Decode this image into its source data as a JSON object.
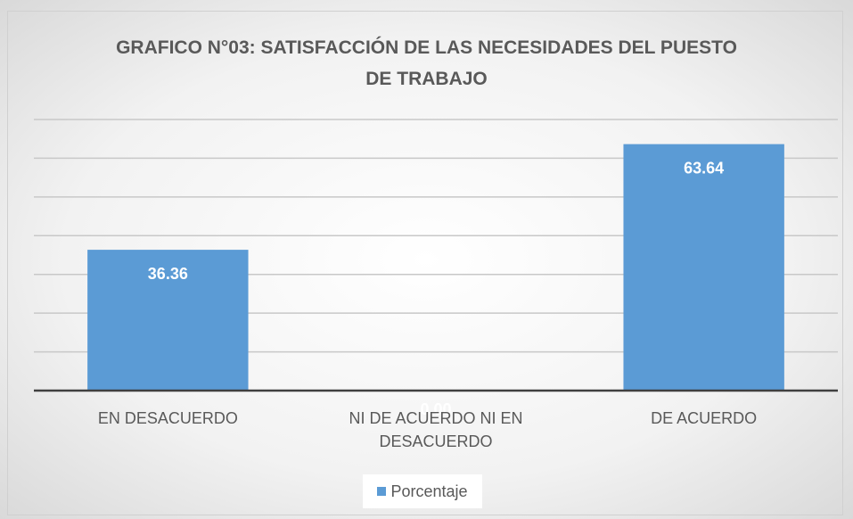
{
  "chart_data": {
    "type": "bar",
    "title": "GRAFICO N°03: SATISFACCIÓN DE LAS NECESIDADES DEL PUESTO DE TRABAJO",
    "categories": [
      "EN DESACUERDO",
      "NI DE ACUERDO NI EN DESACUERDO",
      "DE ACUERDO"
    ],
    "series": [
      {
        "name": "Porcentaje",
        "color": "#5b9bd5",
        "values": [
          36.36,
          0,
          63.64
        ],
        "value_labels": [
          "36.36",
          "0.00",
          "63.64"
        ]
      }
    ],
    "ylim": [
      0,
      70
    ],
    "yticks": [
      0,
      10,
      20,
      30,
      40,
      50,
      60,
      70
    ],
    "grid": true,
    "legend": "bottom"
  }
}
